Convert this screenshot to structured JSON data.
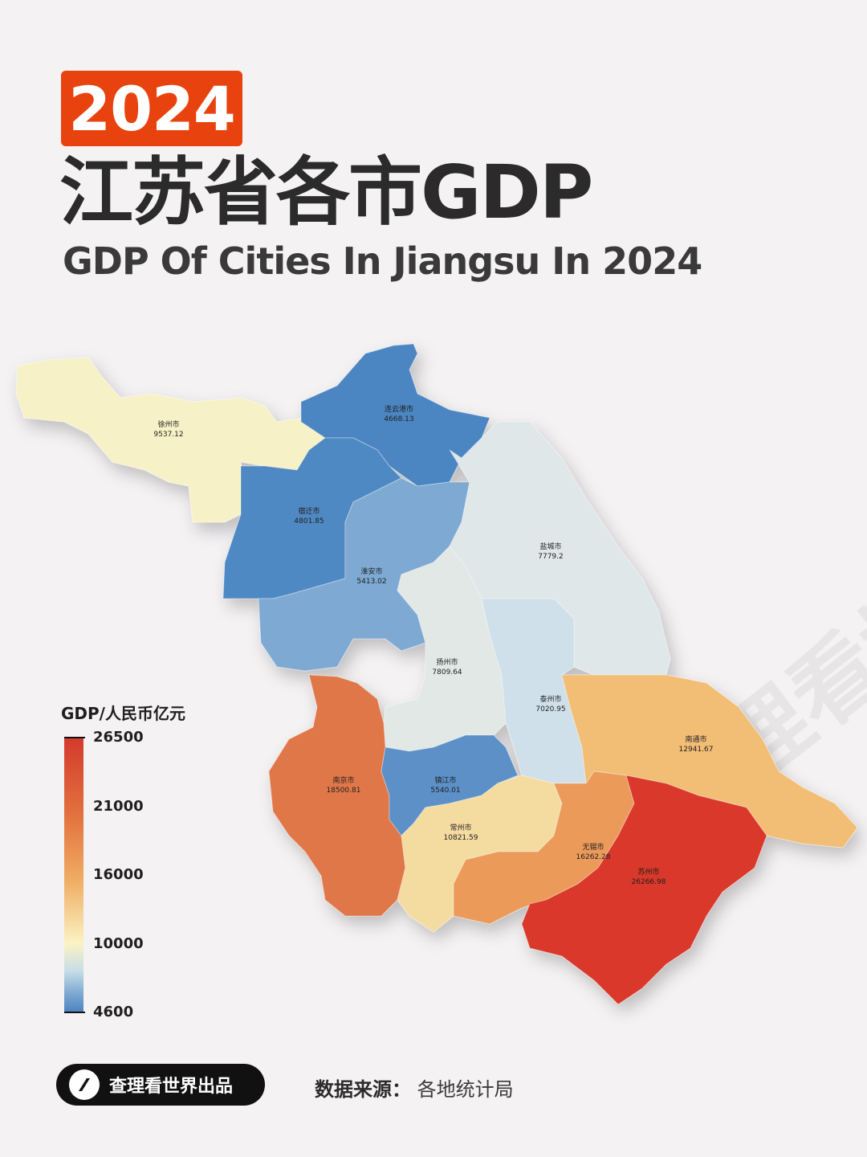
{
  "header": {
    "year": "2024",
    "title_cn": "江苏省各市GDP",
    "title_en": "GDP Of Cities In Jiangsu In 2024"
  },
  "map_data": {
    "region": "Jiangsu",
    "unit": "GDP/人民币亿元",
    "cities": [
      {
        "name": "徐州市",
        "gdp": "9537.12",
        "color": "#f7f1c7"
      },
      {
        "name": "连云港市",
        "gdp": "4668.13",
        "color": "#4b86c2"
      },
      {
        "name": "宿迁市",
        "gdp": "4801.85",
        "color": "#4f89c4"
      },
      {
        "name": "淮安市",
        "gdp": "5413.02",
        "color": "#7ea9d3"
      },
      {
        "name": "盐城市",
        "gdp": "7779.2",
        "color": "#dfe7e8"
      },
      {
        "name": "扬州市",
        "gdp": "7809.64",
        "color": "#e1e8e6"
      },
      {
        "name": "泰州市",
        "gdp": "7020.95",
        "color": "#cfe0ea"
      },
      {
        "name": "南通市",
        "gdp": "12941.67",
        "color": "#f2bd74"
      },
      {
        "name": "南京市",
        "gdp": "18500.81",
        "color": "#e0774a"
      },
      {
        "name": "镇江市",
        "gdp": "5540.01",
        "color": "#5b90c7"
      },
      {
        "name": "常州市",
        "gdp": "10821.59",
        "color": "#f4dba0"
      },
      {
        "name": "无锡市",
        "gdp": "16262.28",
        "color": "#eb9a5a"
      },
      {
        "name": "苏州市",
        "gdp": "26266.98",
        "color": "#d9392b"
      }
    ]
  },
  "legend": {
    "title": "GDP/人民币亿元",
    "ticks": [
      "26500",
      "21000",
      "16000",
      "10000",
      "4600"
    ],
    "gradient": [
      "#d43a2c",
      "#e2713f",
      "#f0ad63",
      "#fbf3c4",
      "#c6dde8",
      "#4a83bf"
    ]
  },
  "footer": {
    "credit": "查理看世界出品",
    "source_label": "数据来源：",
    "source_value": "各地统计局"
  },
  "watermark": "查理看世界"
}
